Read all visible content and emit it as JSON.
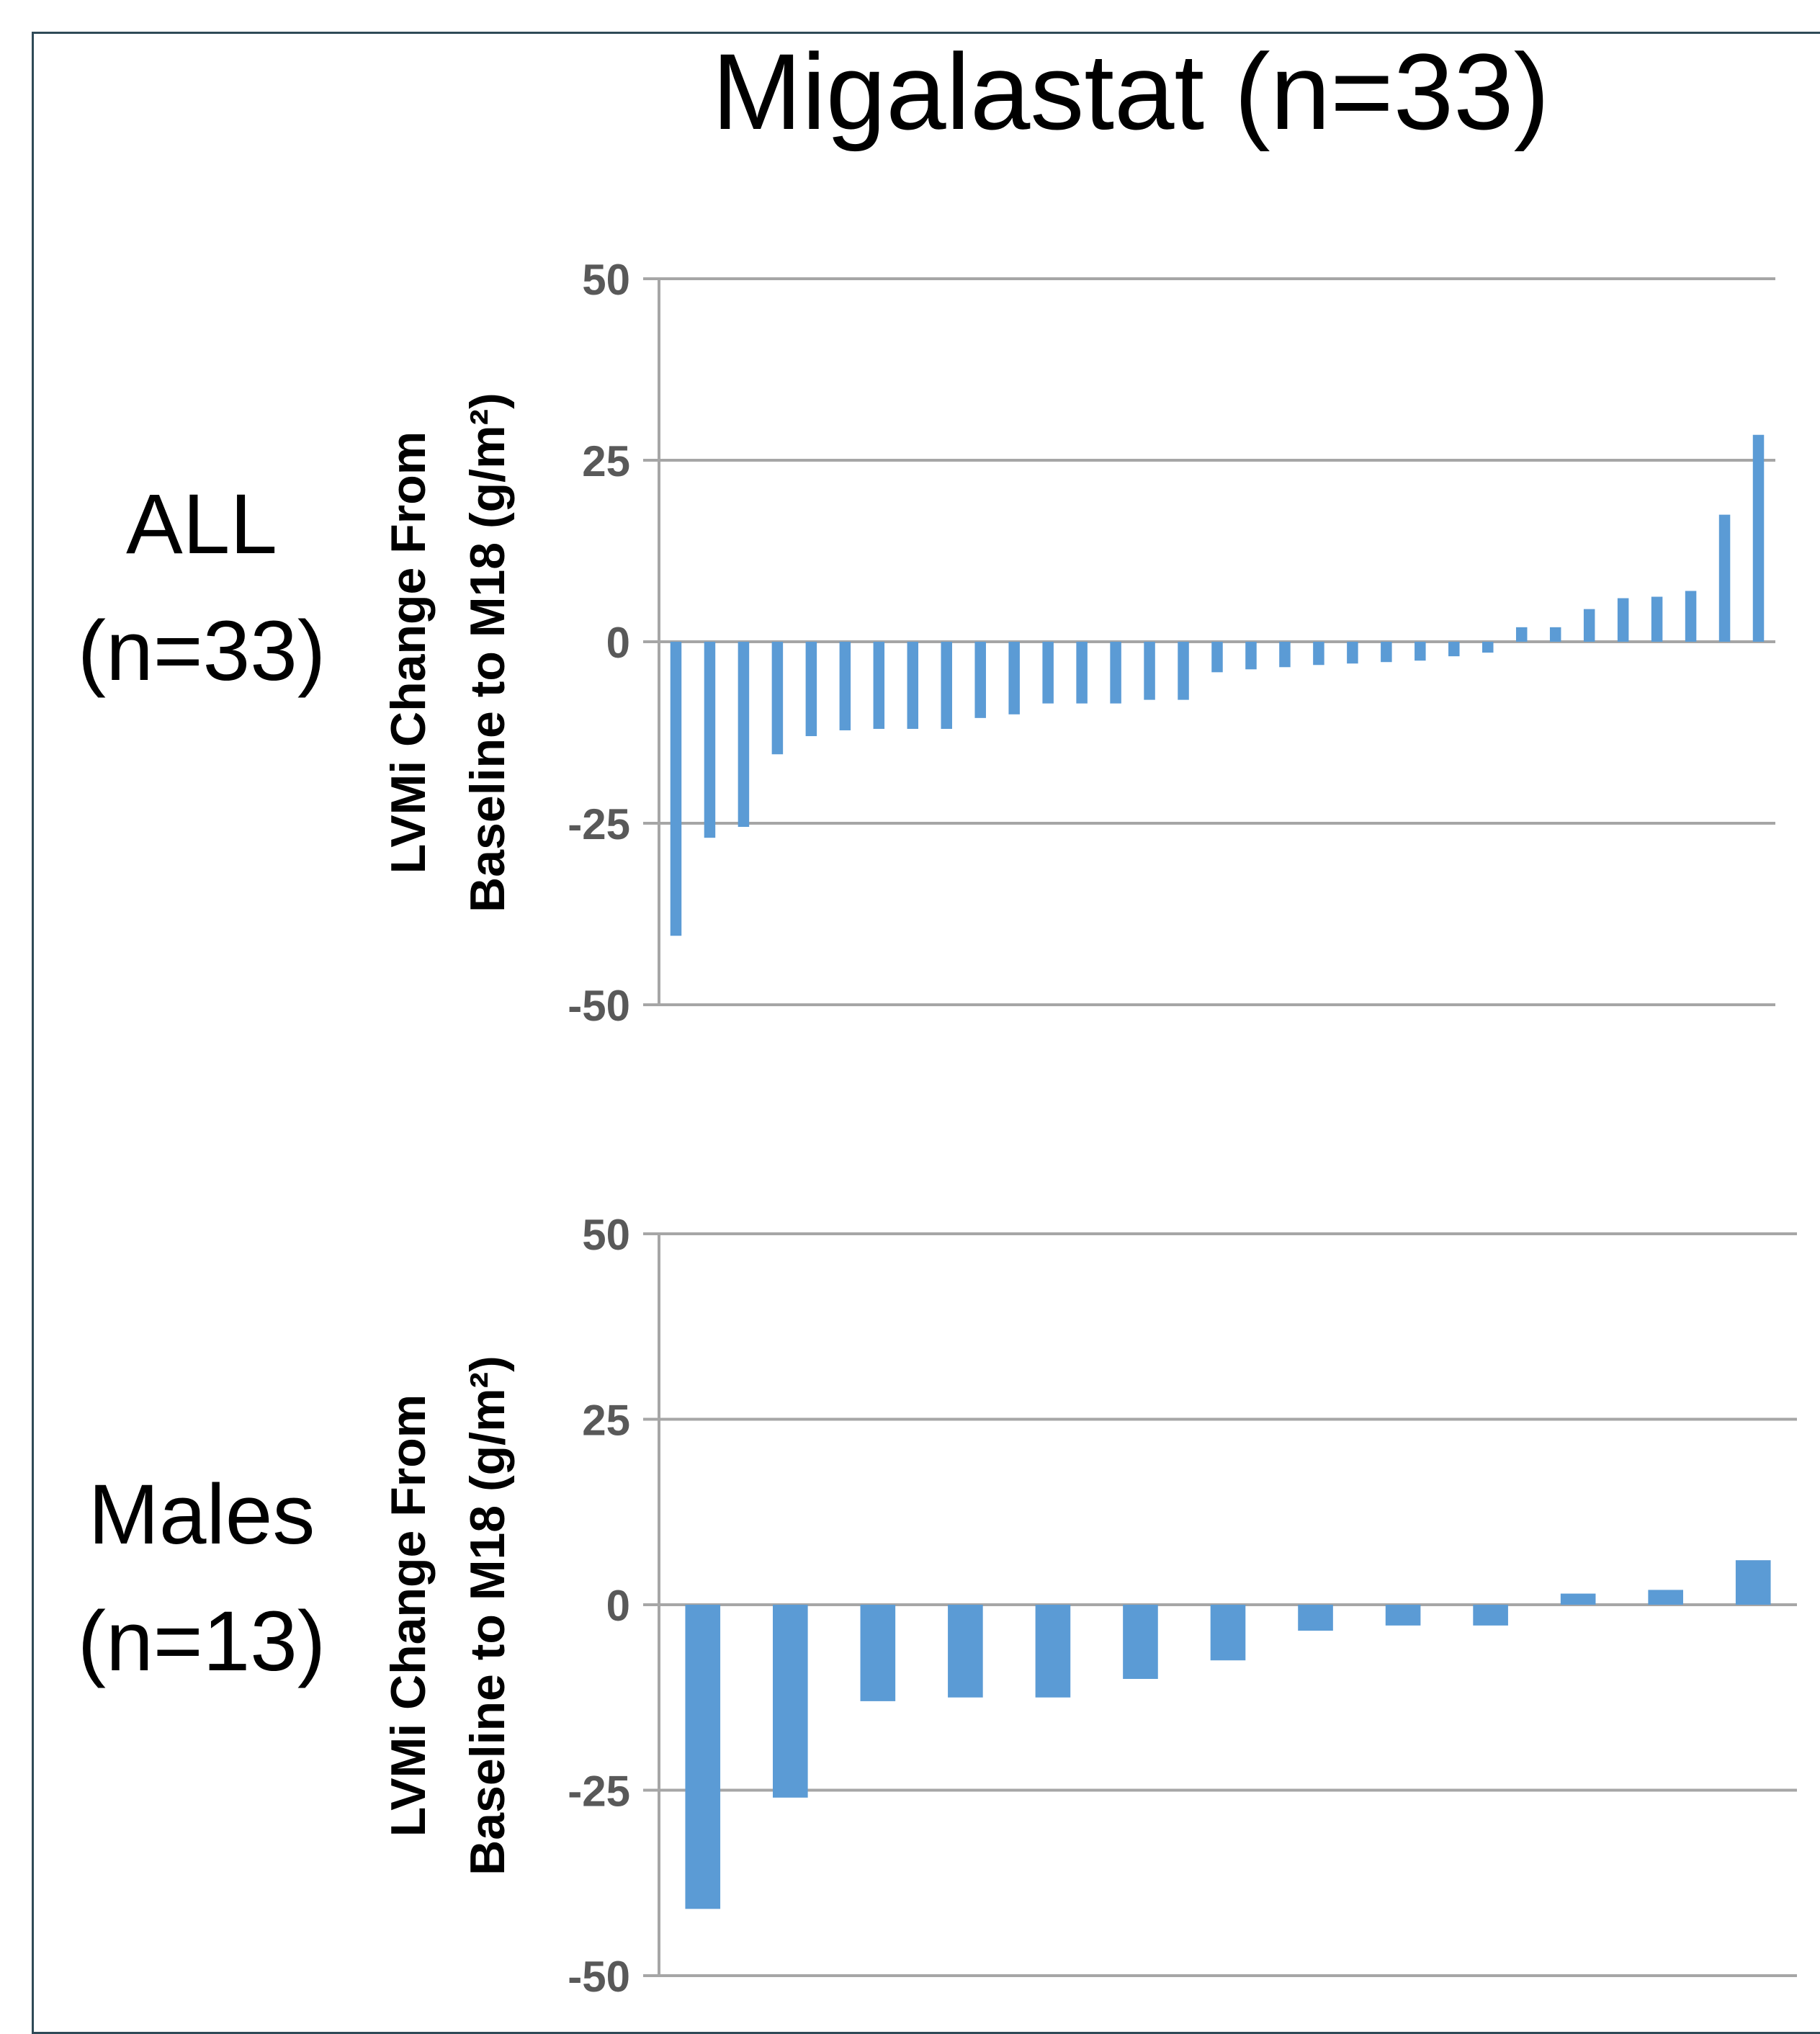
{
  "page": {
    "title": "Migalastat (n=33)"
  },
  "colors": {
    "bar": "#5b9bd5",
    "grid": "#a6a6a6",
    "frame": "#2f4a57"
  },
  "chart_data": [
    {
      "type": "bar",
      "row_label": [
        "ALL",
        "(n=33)"
      ],
      "ylabel": [
        "LVMi Change From",
        "Baseline to M18 (g/m²)"
      ],
      "ylim": [
        -50,
        50
      ],
      "yticks": [
        50,
        25,
        0,
        -25,
        -50
      ],
      "ytick_labels": [
        "50",
        "25",
        "0",
        "-25",
        "-50"
      ],
      "grid": true,
      "legend": "none",
      "values": [
        -40.5,
        -27,
        -25.5,
        -15.5,
        -13,
        -12.2,
        -12,
        -12,
        -12,
        -10.5,
        -10,
        -8.5,
        -8.5,
        -8.5,
        -8,
        -8,
        -4.2,
        -3.8,
        -3.5,
        -3.2,
        -3,
        -2.8,
        -2.6,
        -2,
        -1.5,
        2,
        2,
        4.5,
        6,
        6.2,
        7,
        17.5,
        28.5
      ]
    },
    {
      "type": "bar",
      "row_label": [
        "Males",
        "(n=13)"
      ],
      "ylabel": [
        "LVMi Change From",
        "Baseline to M18 (g/m²)"
      ],
      "ylim": [
        -50,
        50
      ],
      "yticks": [
        50,
        25,
        0,
        -25,
        -50
      ],
      "ytick_labels": [
        "50",
        "25",
        "0",
        "-25",
        "-50"
      ],
      "grid": true,
      "legend": "none",
      "values": [
        -41,
        -26,
        -13,
        -12.5,
        -12.5,
        -10,
        -7.5,
        -3.5,
        -2.8,
        -2.8,
        1.5,
        2,
        6
      ]
    }
  ]
}
